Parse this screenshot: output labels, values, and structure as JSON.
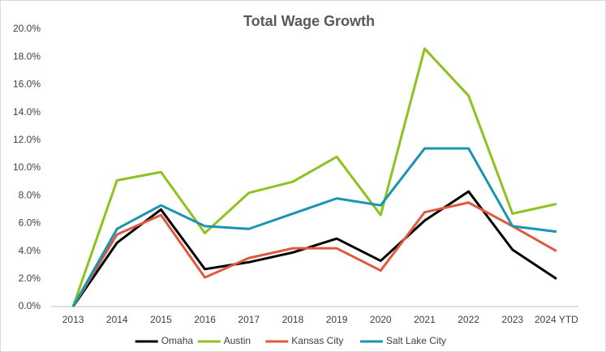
{
  "chart_data": {
    "type": "line",
    "title": "Total Wage Growth",
    "categories": [
      "2013",
      "2014",
      "2015",
      "2016",
      "2017",
      "2018",
      "2019",
      "2020",
      "2021",
      "2022",
      "2023",
      "2024 YTD"
    ],
    "series": [
      {
        "name": "Omaha",
        "color": "#000000",
        "values": [
          0,
          4.6,
          7.0,
          2.7,
          3.2,
          3.9,
          4.9,
          3.3,
          6.2,
          8.3,
          4.1,
          2.0
        ]
      },
      {
        "name": "Austin",
        "color": "#8dc21f",
        "values": [
          0,
          9.1,
          9.7,
          5.3,
          8.2,
          9.0,
          10.8,
          6.6,
          18.6,
          15.2,
          6.7,
          7.4
        ]
      },
      {
        "name": "Kansas City",
        "color": "#e2583e",
        "values": [
          0,
          5.2,
          6.6,
          2.1,
          3.5,
          4.2,
          4.2,
          2.6,
          6.8,
          7.5,
          5.8,
          4.0
        ]
      },
      {
        "name": "Salt Lake City",
        "color": "#1b93b3",
        "values": [
          0,
          5.6,
          7.3,
          5.8,
          5.6,
          6.7,
          7.8,
          7.3,
          11.4,
          11.4,
          5.8,
          5.4
        ]
      }
    ],
    "ylim": [
      0,
      20
    ],
    "yticks": [
      {
        "value": 0,
        "label": "0.0%"
      },
      {
        "value": 2,
        "label": "2.0%"
      },
      {
        "value": 4,
        "label": "4.0%"
      },
      {
        "value": 6,
        "label": "6.0%"
      },
      {
        "value": 8,
        "label": "8.0%"
      },
      {
        "value": 10,
        "label": "10.0%"
      },
      {
        "value": 12,
        "label": "12.0%"
      },
      {
        "value": 14,
        "label": "14.0%"
      },
      {
        "value": 16,
        "label": "16.0%"
      },
      {
        "value": 18,
        "label": "18.0%"
      },
      {
        "value": 20,
        "label": "20.0%"
      }
    ],
    "grid": false,
    "legend": "bottom"
  }
}
